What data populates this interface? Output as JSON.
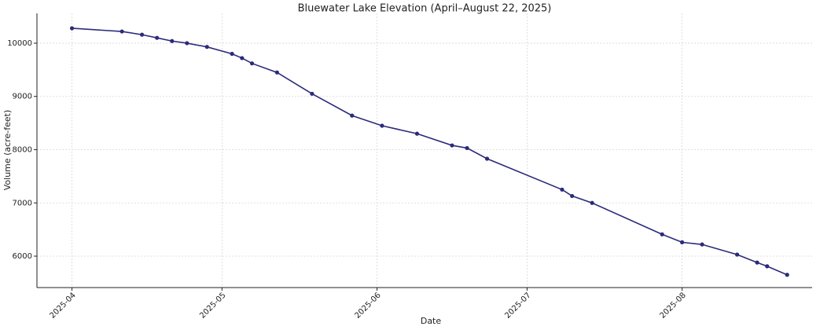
{
  "chart_data": {
    "type": "line",
    "title": "Bluewater Lake Elevation (April–August 22, 2025)",
    "x_label": "Date",
    "y_label": "Volume (acre-feet)",
    "x": [
      "2025-04-01",
      "2025-04-11",
      "2025-04-15",
      "2025-04-18",
      "2025-04-21",
      "2025-04-24",
      "2025-04-28",
      "2025-05-03",
      "2025-05-05",
      "2025-05-07",
      "2025-05-12",
      "2025-05-19",
      "2025-05-27",
      "2025-06-02",
      "2025-06-09",
      "2025-06-16",
      "2025-06-19",
      "2025-06-23",
      "2025-07-08",
      "2025-07-10",
      "2025-07-14",
      "2025-07-28",
      "2025-08-01",
      "2025-08-05",
      "2025-08-12",
      "2025-08-16",
      "2025-08-18",
      "2025-08-22"
    ],
    "series": [
      {
        "name": "Volume",
        "color": "#2b2b7a",
        "values": [
          10280,
          10220,
          10160,
          10100,
          10040,
          10000,
          9930,
          9800,
          9720,
          9620,
          9450,
          9050,
          8640,
          8450,
          8300,
          8080,
          8030,
          7830,
          7250,
          7130,
          7000,
          6410,
          6260,
          6220,
          6030,
          5880,
          5810,
          5650
        ]
      }
    ],
    "xlim": [
      "2025-03-25",
      "2025-08-27"
    ],
    "xticks": [
      {
        "value": "2025-04-01",
        "label": "2025-04"
      },
      {
        "value": "2025-05-01",
        "label": "2025-05"
      },
      {
        "value": "2025-06-01",
        "label": "2025-06"
      },
      {
        "value": "2025-07-01",
        "label": "2025-07"
      },
      {
        "value": "2025-08-01",
        "label": "2025-08"
      }
    ],
    "ylim": [
      5410,
      10560
    ],
    "yticks": [
      6000,
      7000,
      8000,
      9000,
      10000
    ],
    "grid": true
  }
}
